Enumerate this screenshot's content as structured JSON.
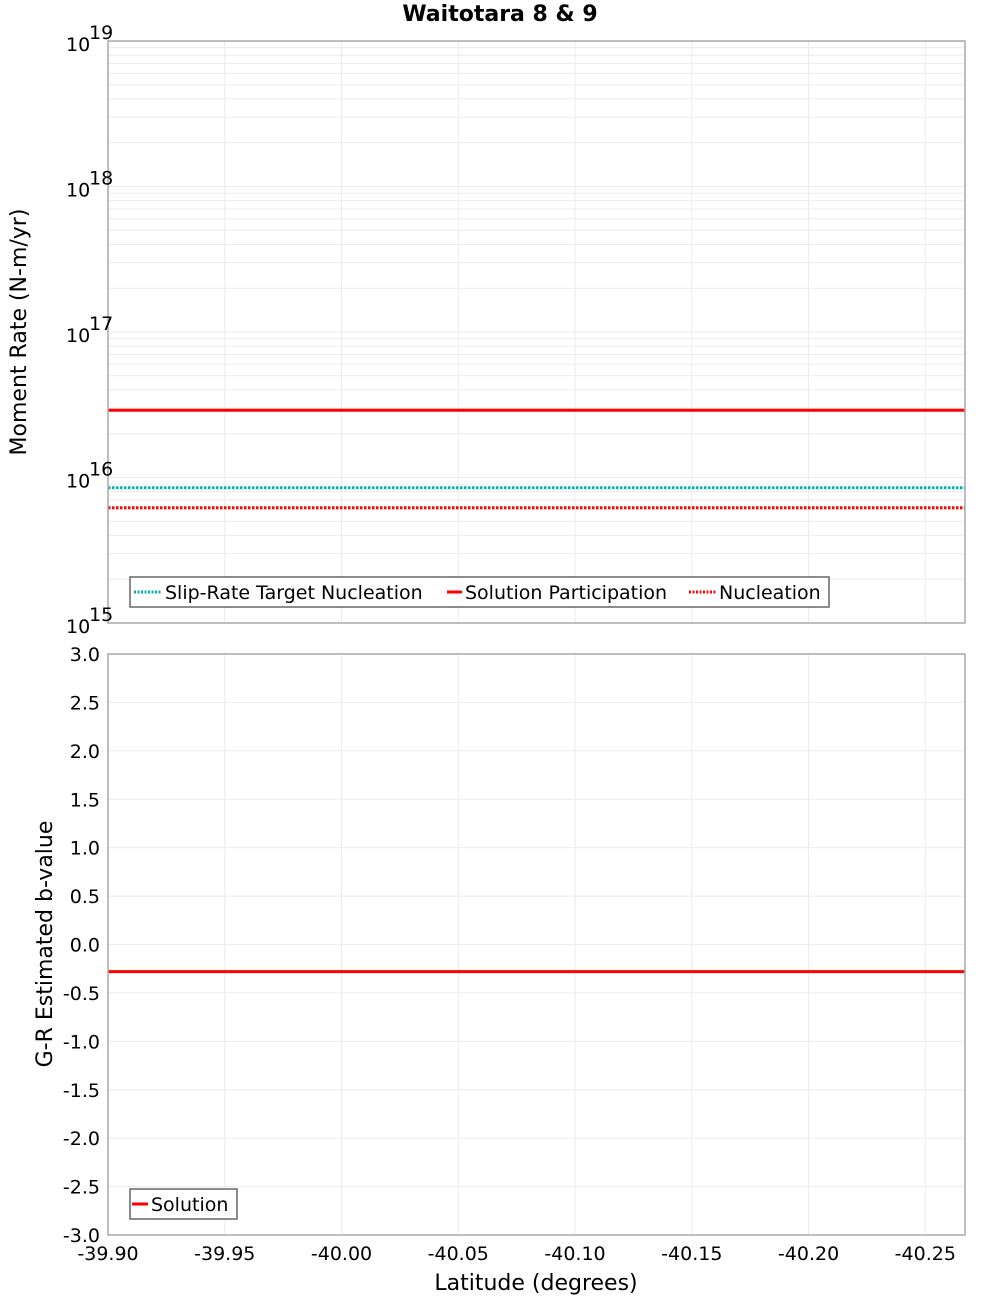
{
  "title": "Waitotara 8 & 9",
  "colors": {
    "solution": "#ff0000",
    "slip_rate_target": "#00b0b0",
    "nucleation": "#ff0000",
    "grid": "#ebebeb",
    "frame": "#a8a8a8"
  },
  "chart_data": [
    {
      "type": "line",
      "title": "Waitotara 8 & 9",
      "xlabel": "Latitude (degrees)",
      "ylabel": "Moment Rate (N-m/yr)",
      "yscale": "log",
      "ylim": [
        1000000000000000.0,
        1e+19
      ],
      "xlim": [
        -39.9,
        -40.267
      ],
      "x_reversed": true,
      "grid": true,
      "ytick_labels": [
        "10^15",
        "10^16",
        "10^17",
        "10^18",
        "10^19"
      ],
      "legend_position": "lower left",
      "x": [
        -39.9,
        -40.042,
        -40.165,
        -40.267
      ],
      "series": [
        {
          "name": "Slip-Rate Target Nucleation",
          "style": "dotted",
          "color": "#00b0b0",
          "values": [
            8500000000000000.0,
            8500000000000000.0,
            8500000000000000.0,
            8500000000000000.0
          ]
        },
        {
          "name": "Solution Participation",
          "style": "solid",
          "color": "#ff0000",
          "values": [
            2.9e+16,
            2.9e+16,
            2.9e+16,
            2.9e+16
          ]
        },
        {
          "name": "Nucleation",
          "style": "dotted",
          "color": "#ff0000",
          "values": [
            6200000000000000.0,
            6200000000000000.0,
            6200000000000000.0,
            6200000000000000.0
          ]
        }
      ]
    },
    {
      "type": "line",
      "xlabel": "Latitude (degrees)",
      "ylabel": "G-R Estimated b-value",
      "ylim": [
        -3.0,
        3.0
      ],
      "xlim": [
        -39.9,
        -40.267
      ],
      "x_reversed": true,
      "grid": true,
      "ytick_labels": [
        "3.0",
        "2.5",
        "2.0",
        "1.5",
        "1.0",
        "0.5",
        "0.0",
        "-0.5",
        "-1.0",
        "-1.5",
        "-2.0",
        "-2.5",
        "-3.0"
      ],
      "xtick_labels": [
        "-39.90",
        "-39.95",
        "-40.00",
        "-40.05",
        "-40.10",
        "-40.15",
        "-40.20",
        "-40.25"
      ],
      "legend_position": "lower left",
      "x": [
        -39.9,
        -40.042,
        -40.165,
        -40.267
      ],
      "series": [
        {
          "name": "Solution",
          "style": "solid",
          "color": "#ff0000",
          "values": [
            -0.28,
            -0.28,
            -0.28,
            -0.28
          ]
        }
      ]
    }
  ],
  "top_plot": {
    "ylabel": "Moment Rate (N-m/yr)",
    "ytick_base": "10",
    "ytick_exponents": [
      "19",
      "18",
      "17",
      "16",
      "15"
    ],
    "legend": [
      "Slip-Rate Target Nucleation",
      "Solution Participation",
      "Nucleation"
    ]
  },
  "bottom_plot": {
    "ylabel": "G-R Estimated b-value",
    "yticks": [
      "3.0",
      "2.5",
      "2.0",
      "1.5",
      "1.0",
      "0.5",
      "0.0",
      "-0.5",
      "-1.0",
      "-1.5",
      "-2.0",
      "-2.5",
      "-3.0"
    ],
    "xticks": [
      "-39.90",
      "-39.95",
      "-40.00",
      "-40.05",
      "-40.10",
      "-40.15",
      "-40.20",
      "-40.25"
    ],
    "xlabel": "Latitude (degrees)",
    "legend": [
      "Solution"
    ]
  }
}
